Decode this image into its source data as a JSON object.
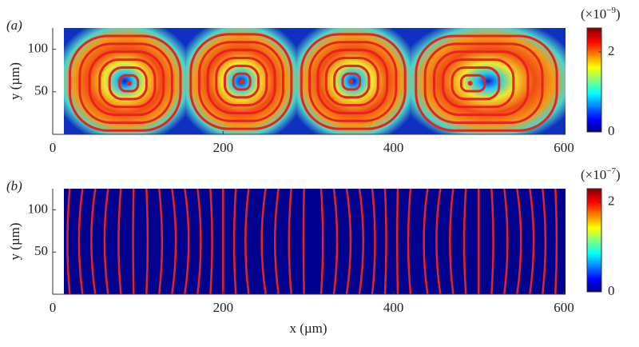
{
  "chart_data": [
    {
      "type": "vortex",
      "panel_label": "(a)",
      "y_label": "y (µm)",
      "x": [
        90,
        222,
        350,
        490
      ],
      "y": [
        60,
        62,
        62,
        60
      ],
      "xlim": [
        0,
        600
      ],
      "xticks": [
        0,
        200,
        400,
        600
      ],
      "ylim": [
        0,
        125
      ],
      "yticks": [
        50,
        100
      ],
      "clim": [
        0,
        2.6
      ],
      "cticks": [
        0,
        2
      ],
      "colorbar_multiplier": [
        "(×10",
        "−9",
        ")"
      ],
      "line_color": "#e8231c"
    },
    {
      "type": "streamlines",
      "panel_label": "(b)",
      "y_label": "y (µm)",
      "x_label": "x (µm)",
      "x": [
        20,
        35,
        50,
        65,
        80,
        95,
        110,
        125,
        140,
        155,
        170,
        185,
        200,
        215,
        230,
        250,
        265,
        280,
        295,
        315,
        330,
        345,
        360,
        375,
        390,
        405,
        420,
        440,
        455,
        470,
        485,
        500,
        515,
        530,
        545,
        560,
        575,
        590
      ],
      "xlim": [
        0,
        600
      ],
      "xticks": [
        0,
        200,
        400,
        600
      ],
      "ylim": [
        0,
        125
      ],
      "yticks": [
        50,
        100
      ],
      "clim": [
        0,
        2.3
      ],
      "cticks": [
        0,
        2
      ],
      "colorbar_multiplier": [
        "(×10",
        "−7",
        ")"
      ],
      "line_color": "#e8231c"
    }
  ]
}
